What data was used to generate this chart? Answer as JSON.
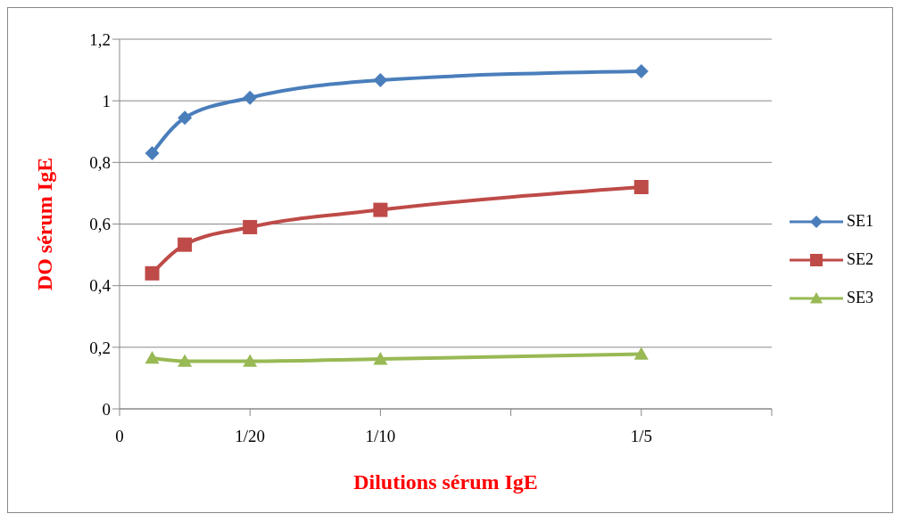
{
  "chart_data": {
    "type": "line",
    "xlabel": "Dilutions sérum IgE",
    "ylabel": "DO  sérum IgE",
    "xlim": [
      0,
      0.25
    ],
    "xticks": [
      {
        "value": 0,
        "label": "0"
      },
      {
        "value": 0.05,
        "label": "1/20"
      },
      {
        "value": 0.1,
        "label": "1/10"
      },
      {
        "value": 0.15,
        "label": null
      },
      {
        "value": 0.2,
        "label": "1/5"
      },
      {
        "value": 0.25,
        "label": null
      }
    ],
    "ylim": [
      0,
      1.2
    ],
    "yticks": [
      {
        "value": 0,
        "label": "0"
      },
      {
        "value": 0.2,
        "label": "0,2"
      },
      {
        "value": 0.4,
        "label": "0,4"
      },
      {
        "value": 0.6,
        "label": "0,6"
      },
      {
        "value": 0.8,
        "label": "0,8"
      },
      {
        "value": 1,
        "label": "1"
      },
      {
        "value": 1.2,
        "label": "1,2"
      }
    ],
    "x": [
      0.0125,
      0.025,
      0.05,
      0.1,
      0.2
    ],
    "series": [
      {
        "name": "SE1",
        "color": "#4a7ebb",
        "marker": "diamond",
        "values": [
          0.83,
          0.945,
          1.01,
          1.067,
          1.096
        ]
      },
      {
        "name": "SE2",
        "color": "#be4b48",
        "marker": "square",
        "values": [
          0.44,
          0.533,
          0.59,
          0.646,
          0.72
        ]
      },
      {
        "name": "SE3",
        "color": "#98b954",
        "marker": "triangle",
        "values": [
          0.165,
          0.155,
          0.155,
          0.162,
          0.178
        ]
      }
    ],
    "grid": "y",
    "legend": "right",
    "line_style": "solid"
  }
}
